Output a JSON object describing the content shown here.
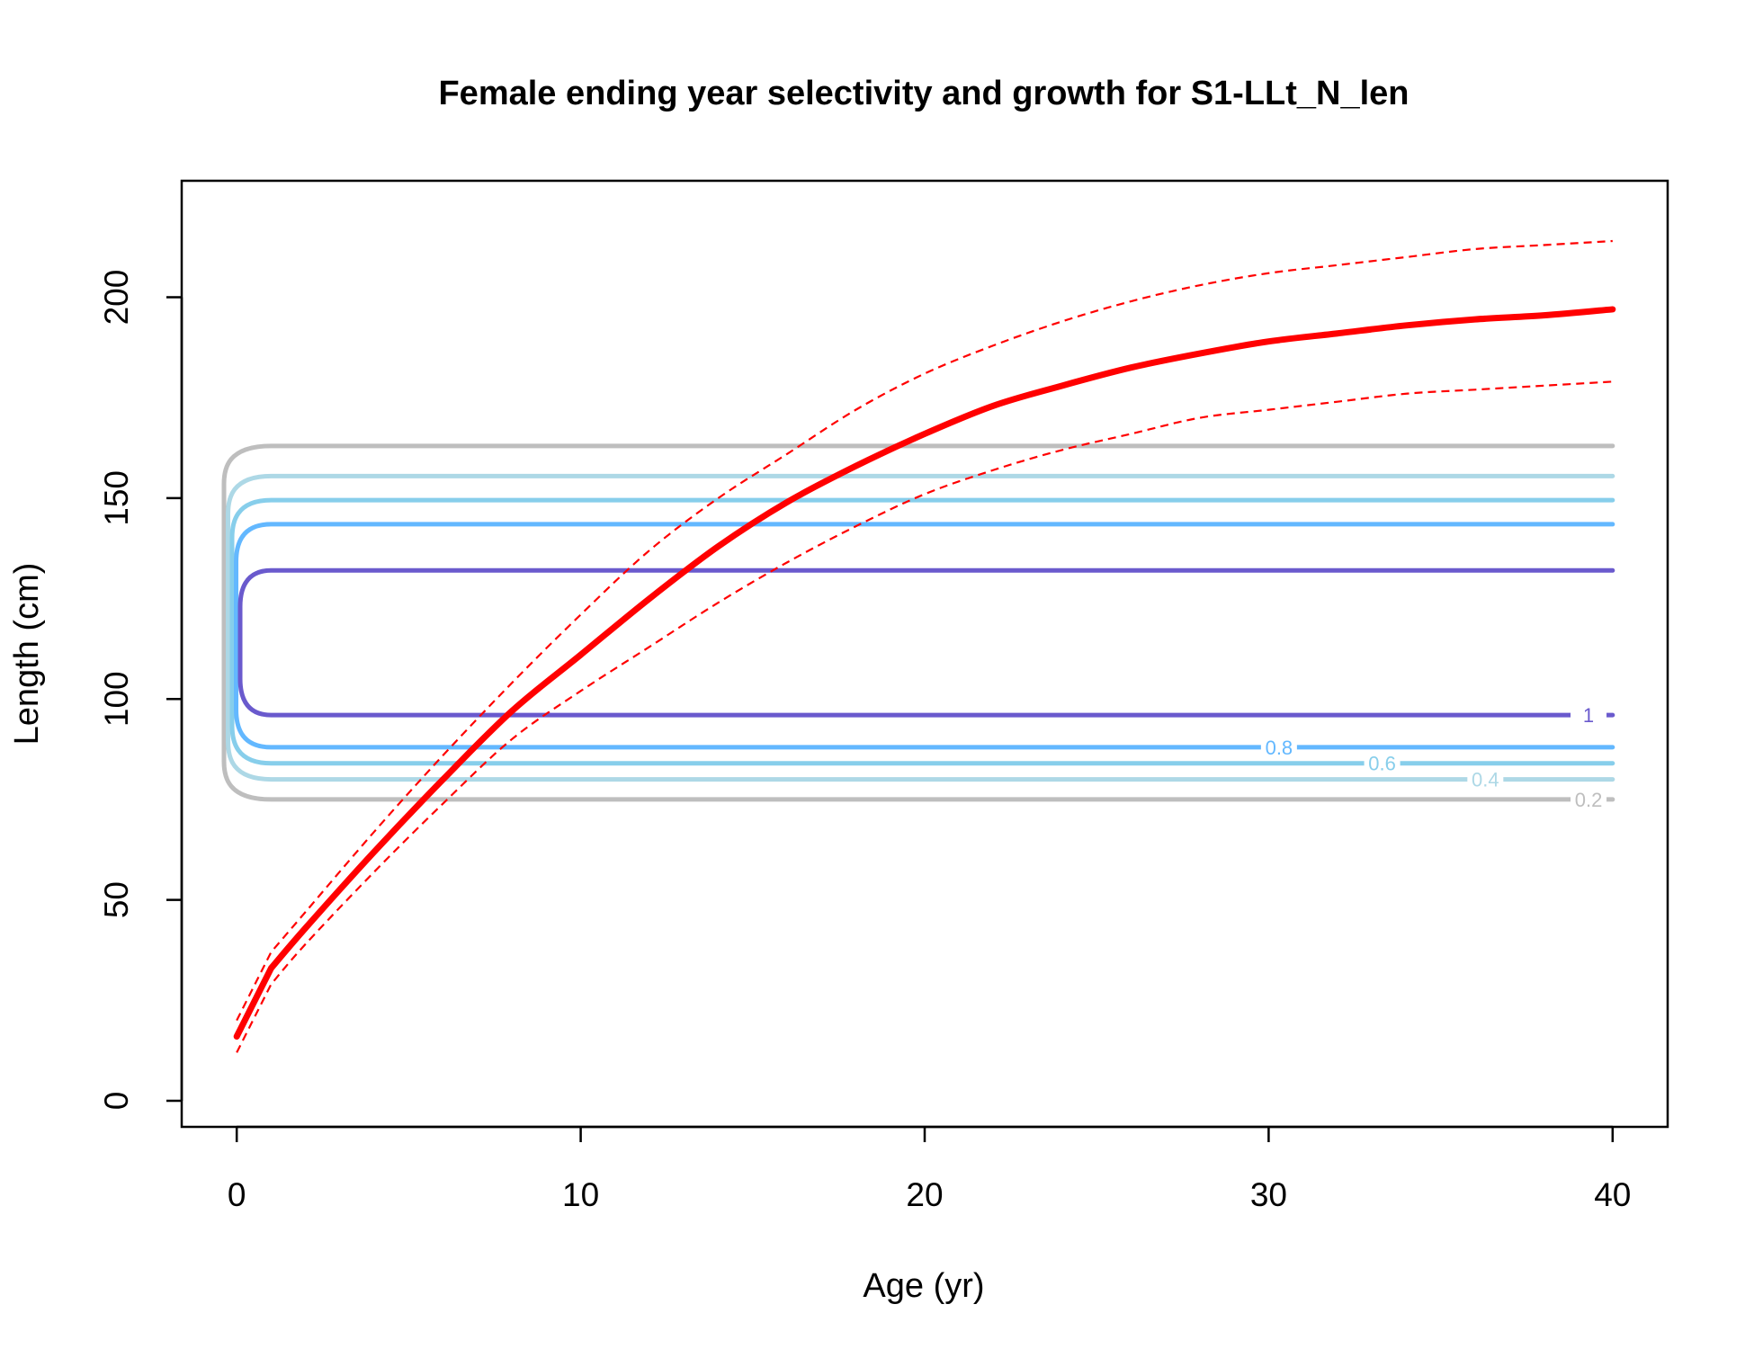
{
  "chart_data": {
    "type": "line",
    "title": "Female ending year selectivity and growth for S1-LLt_N_len",
    "xlabel": "Age (yr)",
    "ylabel": "Length (cm)",
    "xlim": [
      -1.6,
      41.6
    ],
    "ylim": [
      -6.5,
      229
    ],
    "x_ticks": [
      0,
      10,
      20,
      30,
      40
    ],
    "y_ticks": [
      0,
      50,
      100,
      150,
      200
    ],
    "grid": false,
    "growth": {
      "color": "#ff0000",
      "ages": [
        0,
        1,
        2,
        4,
        6,
        8,
        10,
        12,
        14,
        16,
        18,
        20,
        22,
        24,
        26,
        28,
        30,
        32,
        34,
        36,
        38,
        40
      ],
      "mean": [
        16,
        33,
        43,
        62,
        80,
        97,
        111,
        125,
        138,
        149,
        158,
        166,
        173,
        178,
        182.5,
        186,
        189,
        191,
        193,
        194.5,
        195.5,
        197
      ],
      "upper": [
        20,
        37,
        47,
        67,
        86,
        104,
        121,
        137,
        150,
        161,
        172,
        181,
        188,
        194,
        199,
        203,
        206,
        208,
        210,
        212,
        213,
        214
      ],
      "lower": [
        12,
        29,
        39,
        57,
        74,
        90,
        102,
        113,
        124,
        134,
        143,
        151,
        157,
        162,
        166,
        170,
        172,
        174,
        176,
        177,
        178,
        179
      ]
    },
    "selectivity_contours": [
      {
        "level": "0.2",
        "color": "#bebebe",
        "lower": 75,
        "upper": 163,
        "label_age": 39.3
      },
      {
        "level": "0.4",
        "color": "#add8e6",
        "lower": 80,
        "upper": 155.5,
        "label_age": 36.3
      },
      {
        "level": "0.6",
        "color": "#87ceeb",
        "lower": 84,
        "upper": 149.5,
        "label_age": 33.3
      },
      {
        "level": "0.8",
        "color": "#63b8ff",
        "lower": 88,
        "upper": 143.5,
        "label_age": 30.3
      },
      {
        "level": "1",
        "color": "#6a5acd",
        "lower": 96,
        "upper": 132,
        "label_age": 39.3
      }
    ]
  }
}
